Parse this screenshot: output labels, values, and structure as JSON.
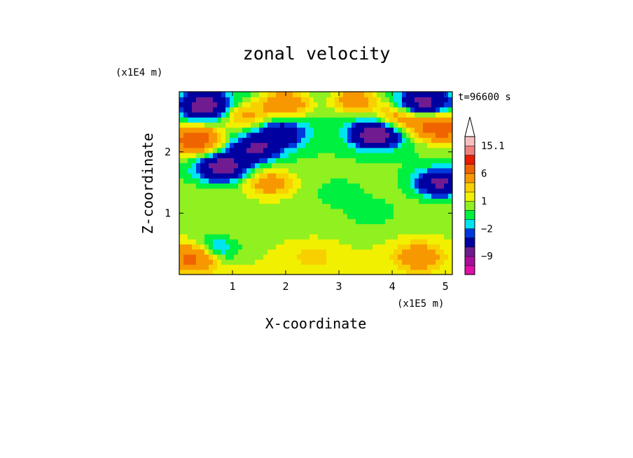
{
  "chart_data": {
    "type": "heatmap",
    "title": "zonal velocity",
    "xlabel": "X-coordinate",
    "ylabel": "Z-coordinate",
    "x_unit": "(x1E5 m)",
    "y_unit": "(x1E4 m)",
    "time_label": "t=96600 s",
    "xlim": [
      0,
      5.13
    ],
    "ylim": [
      0,
      2.98
    ],
    "x_ticks": [
      1,
      2,
      3,
      4,
      5
    ],
    "y_ticks": [
      1,
      2
    ],
    "grid": false,
    "colorbar": {
      "levels": [
        -15.1,
        -12,
        -9,
        -6,
        -3,
        -2,
        -1,
        0,
        1,
        2,
        3,
        6,
        9,
        12,
        15.1
      ],
      "labels": [
        {
          "value": "15.1",
          "level": 15.1
        },
        {
          "value": "6",
          "level": 6
        },
        {
          "value": "1",
          "level": 1
        },
        {
          "value": "−2",
          "level": -2
        },
        {
          "value": "−9",
          "level": -9
        }
      ],
      "colors": [
        "#e010a8",
        "#a8109c",
        "#701c90",
        "#0000a0",
        "#0038dc",
        "#00e4f0",
        "#00f040",
        "#90f020",
        "#f0f000",
        "#f8d000",
        "#f89800",
        "#f06400",
        "#e81c00",
        "#f08080",
        "#f8c0c0"
      ],
      "extend": "max"
    },
    "field_features": [
      {
        "x": 0.5,
        "z": 2.75,
        "u": -8
      },
      {
        "x": 1.2,
        "z": 2.6,
        "u": 4
      },
      {
        "x": 2.0,
        "z": 2.8,
        "u": 6
      },
      {
        "x": 3.3,
        "z": 2.85,
        "u": 5
      },
      {
        "x": 4.6,
        "z": 2.8,
        "u": -7
      },
      {
        "x": 3.7,
        "z": 2.3,
        "u": -9
      },
      {
        "x": 4.1,
        "z": 2.55,
        "u": 5
      },
      {
        "x": 0.3,
        "z": 2.2,
        "u": 9
      },
      {
        "x": 0.8,
        "z": 1.75,
        "u": -8
      },
      {
        "x": 1.4,
        "z": 2.05,
        "u": -6
      },
      {
        "x": 1.9,
        "z": 2.3,
        "u": -5
      },
      {
        "x": 1.7,
        "z": 1.5,
        "u": 4
      },
      {
        "x": 4.9,
        "z": 2.4,
        "u": 9
      },
      {
        "x": 4.9,
        "z": 1.5,
        "u": -7
      },
      {
        "x": 3.6,
        "z": 1.0,
        "u": -1.5
      },
      {
        "x": 3.0,
        "z": 1.3,
        "u": -1
      },
      {
        "x": 0.6,
        "z": 0.4,
        "u": -5
      },
      {
        "x": 0.3,
        "z": 0.3,
        "u": 8
      },
      {
        "x": 2.5,
        "z": 0.3,
        "u": 1.5
      },
      {
        "x": 4.5,
        "z": 0.3,
        "u": 4
      }
    ]
  }
}
